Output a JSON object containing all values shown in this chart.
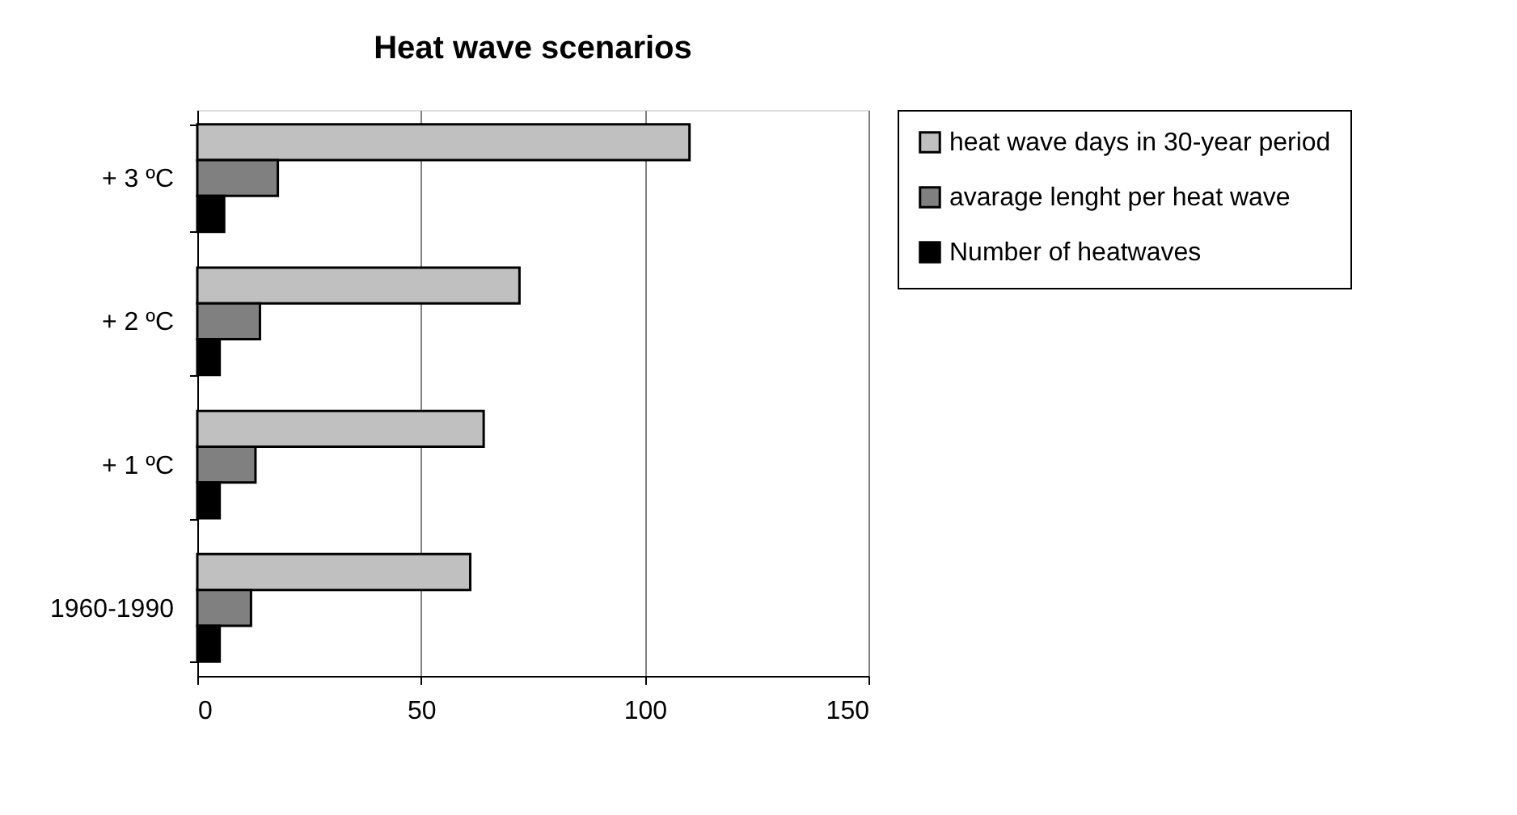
{
  "chart_data": {
    "type": "bar",
    "orientation": "horizontal",
    "title": "Heat wave scenarios",
    "categories": [
      "+ 3 ºC",
      "+ 2 ºC",
      "+ 1 ºC",
      "1960-1990"
    ],
    "series": [
      {
        "name": "heat wave days in 30-year period",
        "color": "#c0c0c0",
        "values": [
          110,
          72,
          64,
          61
        ]
      },
      {
        "name": "avarage lenght per heat wave",
        "color": "#808080",
        "values": [
          18,
          14,
          13,
          12
        ]
      },
      {
        "name": "Number of heatwaves",
        "color": "#000000",
        "values": [
          6,
          5,
          5,
          5
        ]
      }
    ],
    "xlim": [
      0,
      150
    ],
    "xticks": [
      0,
      50,
      100,
      150
    ],
    "grid": "x",
    "legend": "right"
  }
}
